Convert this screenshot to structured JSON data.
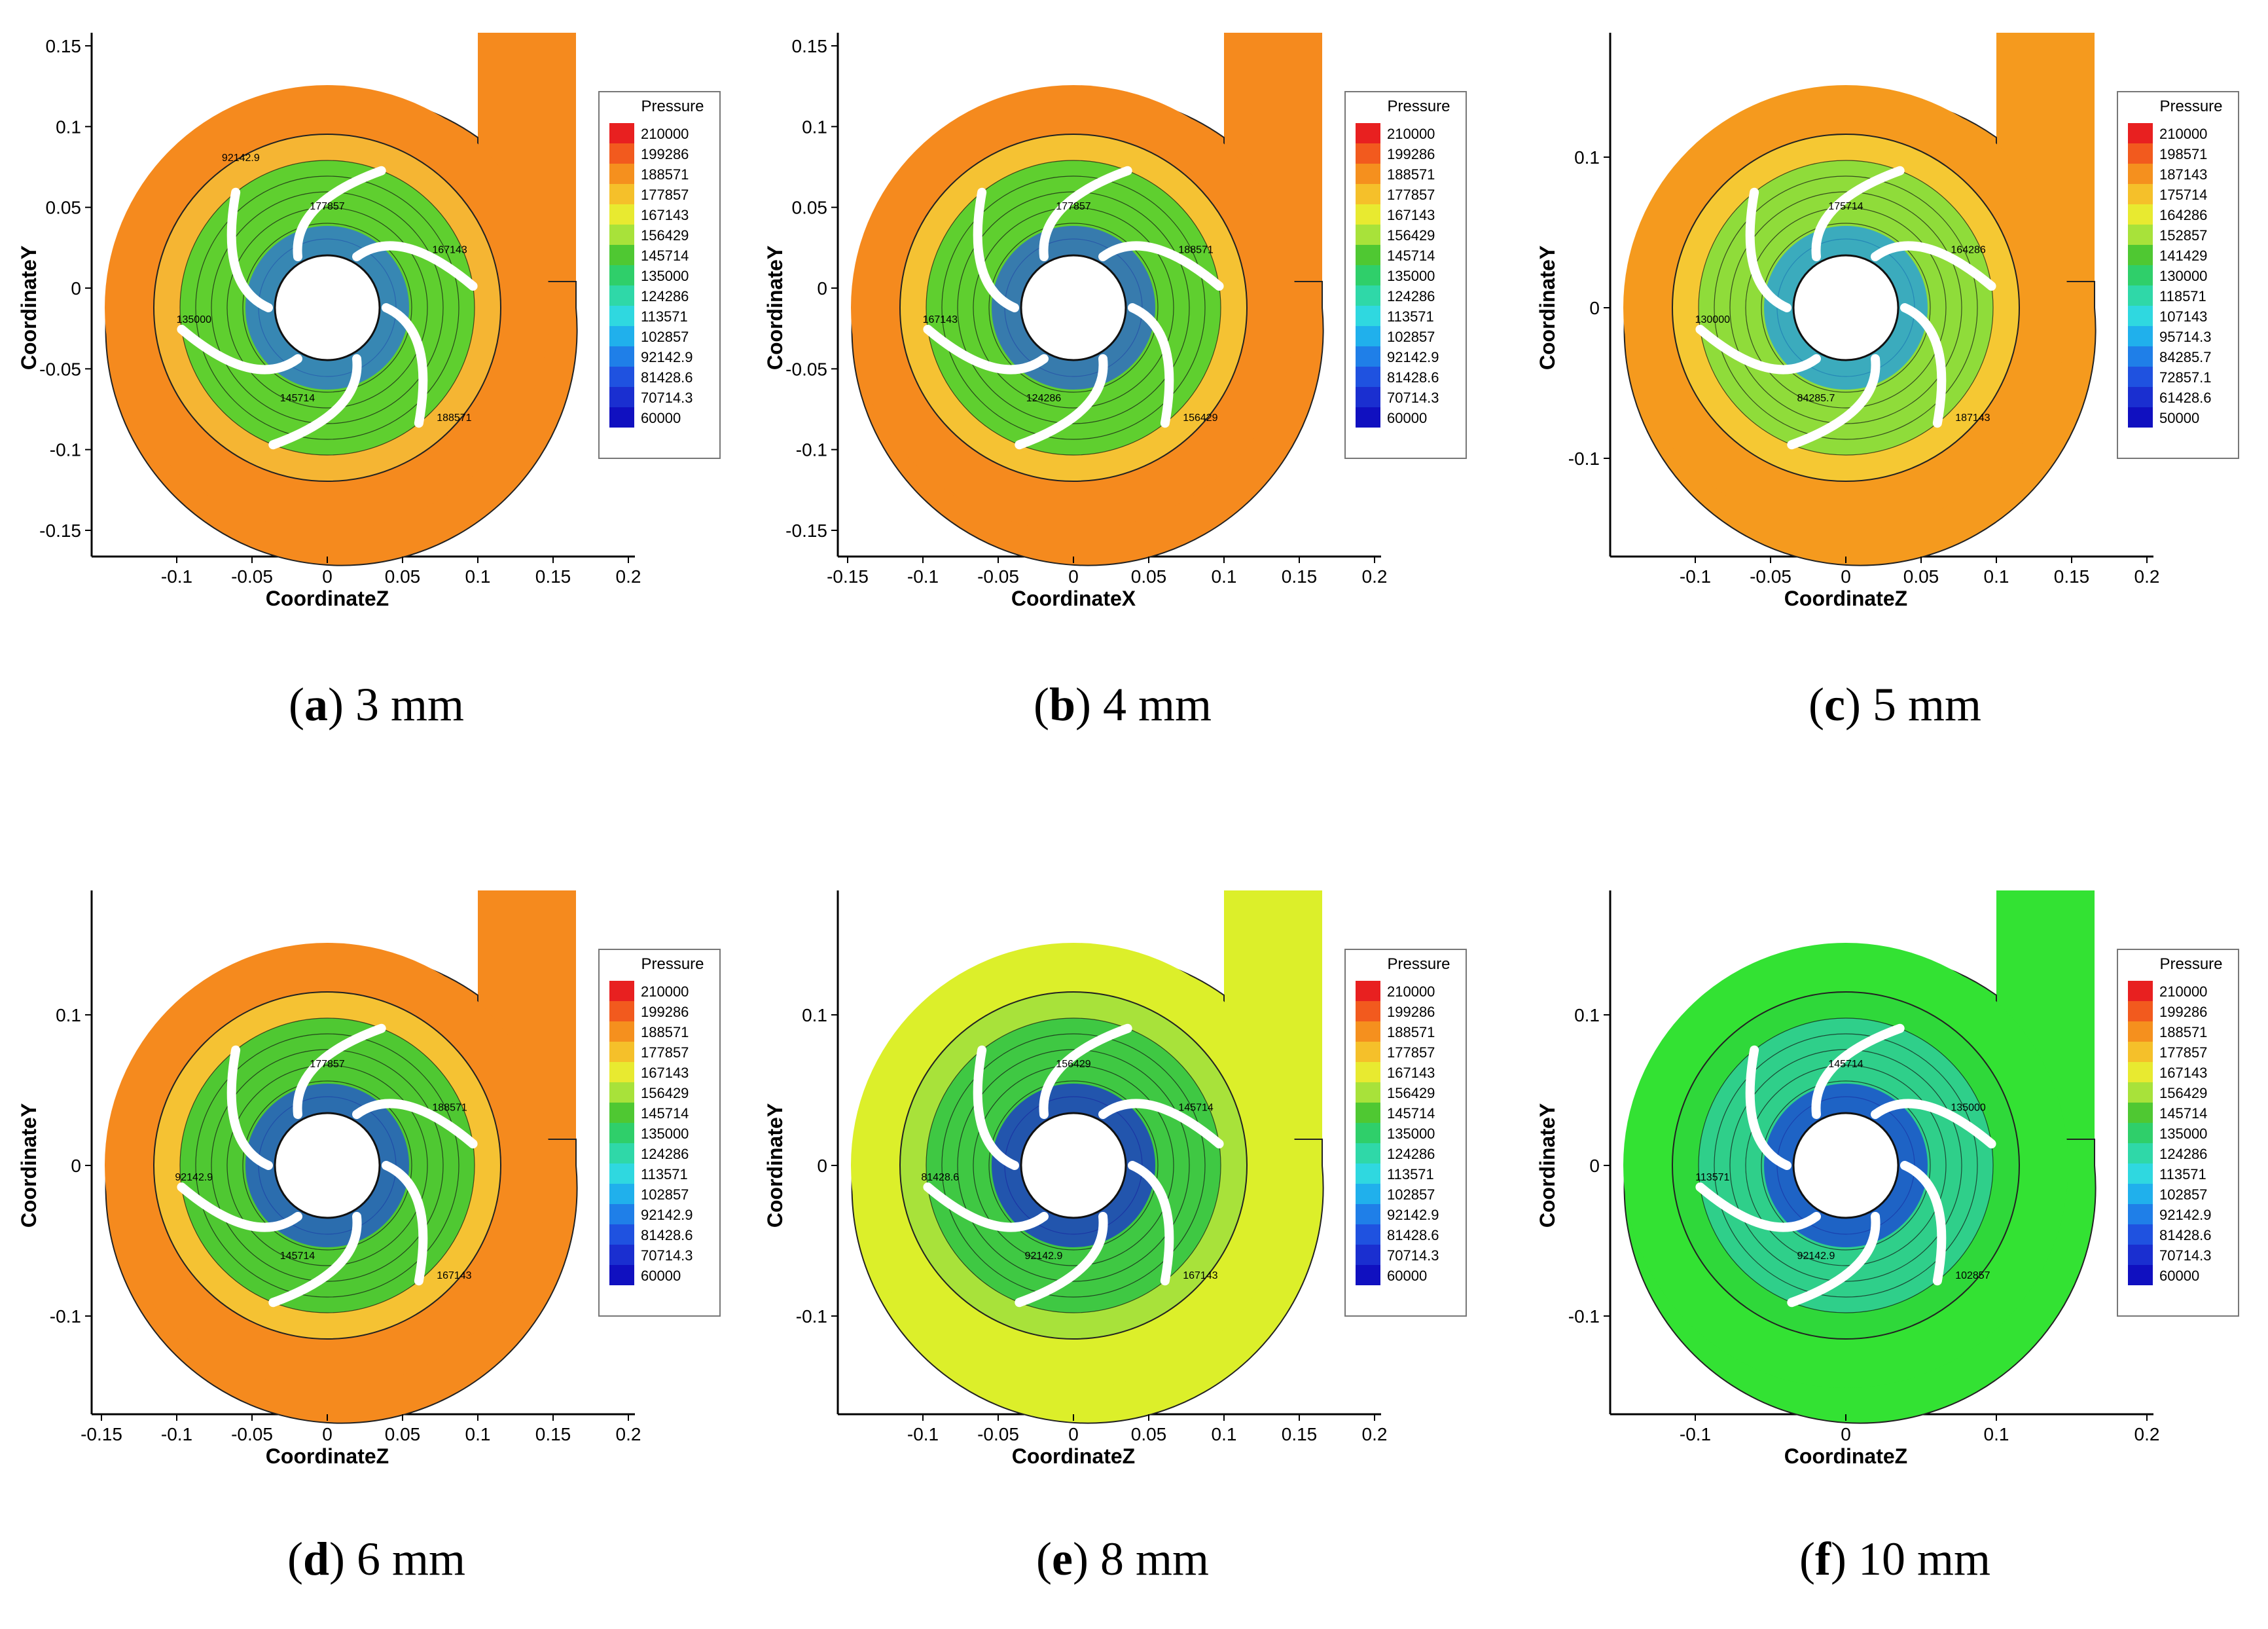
{
  "legend_title": "Pressure",
  "ylabel": "CoordinateY",
  "panels": [
    {
      "id": "a",
      "caption_letter": "a",
      "caption_text": "3 mm",
      "xlabel": "CoordinateZ",
      "xticks": [
        "-0.1",
        "-0.05",
        "0",
        "0.05",
        "0.1",
        "0.15",
        "0.2"
      ],
      "yticks": [
        "0.15",
        "0.1",
        "0.05",
        "0",
        "-0.05",
        "-0.1",
        "-0.15"
      ],
      "legend": [
        "210000",
        "199286",
        "188571",
        "177857",
        "167143",
        "156429",
        "145714",
        "135000",
        "124286",
        "113571",
        "102857",
        "92142.9",
        "81428.6",
        "70714.3",
        "60000"
      ],
      "outer_color": "#f58a1e",
      "mid_color": "#f5b533",
      "inner_color": "#5fcf2f",
      "eye_color": "#2a6fe0",
      "contour_labels": [
        "177857",
        "167143",
        "188571",
        "145714",
        "135000",
        "92142.9"
      ]
    },
    {
      "id": "b",
      "caption_letter": "b",
      "caption_text": "4 mm",
      "xlabel": "CoordinateX",
      "xticks": [
        "-0.15",
        "-0.1",
        "-0.05",
        "0",
        "0.05",
        "0.1",
        "0.15",
        "0.2"
      ],
      "yticks": [
        "0.15",
        "0.1",
        "0.05",
        "0",
        "-0.05",
        "-0.1",
        "-0.15"
      ],
      "legend": [
        "210000",
        "199286",
        "188571",
        "177857",
        "167143",
        "156429",
        "145714",
        "135000",
        "124286",
        "113571",
        "102857",
        "92142.9",
        "81428.6",
        "70714.3",
        "60000"
      ],
      "outer_color": "#f58a1e",
      "mid_color": "#f5c233",
      "inner_color": "#5fcf2f",
      "eye_color": "#2a5fd8",
      "contour_labels": [
        "177857",
        "188571",
        "156429",
        "124286",
        "167143"
      ]
    },
    {
      "id": "c",
      "caption_letter": "c",
      "caption_text": "5 mm",
      "xlabel": "CoordinateZ",
      "xticks": [
        "-0.1",
        "-0.05",
        "0",
        "0.05",
        "0.1",
        "0.15",
        "0.2"
      ],
      "yticks": [
        "0.1",
        "0",
        "-0.1"
      ],
      "legend": [
        "210000",
        "198571",
        "187143",
        "175714",
        "164286",
        "152857",
        "141429",
        "130000",
        "118571",
        "107143",
        "95714.3",
        "84285.7",
        "72857.1",
        "61428.6",
        "50000"
      ],
      "outer_color": "#f59a1e",
      "mid_color": "#f5c833",
      "inner_color": "#8fdc3a",
      "eye_color": "#1f9bea",
      "contour_labels": [
        "175714",
        "164286",
        "187143",
        "84285.7",
        "130000"
      ]
    },
    {
      "id": "d",
      "caption_letter": "d",
      "caption_text": "6 mm",
      "xlabel": "CoordinateZ",
      "xticks": [
        "-0.15",
        "-0.1",
        "-0.05",
        "0",
        "0.05",
        "0.1",
        "0.15",
        "0.2"
      ],
      "yticks": [
        "0.1",
        "0",
        "-0.1"
      ],
      "legend": [
        "210000",
        "199286",
        "188571",
        "177857",
        "167143",
        "156429",
        "145714",
        "135000",
        "124286",
        "113571",
        "102857",
        "92142.9",
        "81428.6",
        "70714.3",
        "60000"
      ],
      "outer_color": "#f58a1e",
      "mid_color": "#f5c233",
      "inner_color": "#4fc832",
      "eye_color": "#1f4fd8",
      "contour_labels": [
        "177857",
        "188571",
        "167143",
        "145714",
        "92142.9"
      ]
    },
    {
      "id": "e",
      "caption_letter": "e",
      "caption_text": "8 mm",
      "xlabel": "CoordinateZ",
      "xticks": [
        "-0.1",
        "-0.05",
        "0",
        "0.05",
        "0.1",
        "0.15",
        "0.2"
      ],
      "yticks": [
        "0.1",
        "0",
        "-0.1"
      ],
      "legend": [
        "210000",
        "199286",
        "188571",
        "177857",
        "167143",
        "156429",
        "145714",
        "135000",
        "124286",
        "113571",
        "102857",
        "92142.9",
        "81428.6",
        "70714.3",
        "60000"
      ],
      "outer_color": "#dcef2a",
      "mid_color": "#a8e23a",
      "inner_color": "#3fc843",
      "eye_color": "#1a2fd0",
      "contour_labels": [
        "156429",
        "145714",
        "167143",
        "92142.9",
        "81428.6"
      ]
    },
    {
      "id": "f",
      "caption_letter": "f",
      "caption_text": "10 mm",
      "xlabel": "CoordinateZ",
      "xticks": [
        "-0.1",
        "0",
        "0.1",
        "0.2"
      ],
      "yticks": [
        "0.1",
        "0",
        "-0.1"
      ],
      "legend": [
        "210000",
        "199286",
        "188571",
        "177857",
        "167143",
        "156429",
        "145714",
        "135000",
        "124286",
        "113571",
        "102857",
        "92142.9",
        "81428.6",
        "70714.3",
        "60000"
      ],
      "outer_color": "#33e233",
      "mid_color": "#2fd83a",
      "inner_color": "#2fcf8a",
      "eye_color": "#1a3fd8",
      "contour_labels": [
        "145714",
        "135000",
        "102857",
        "92142.9",
        "113571"
      ]
    }
  ]
}
